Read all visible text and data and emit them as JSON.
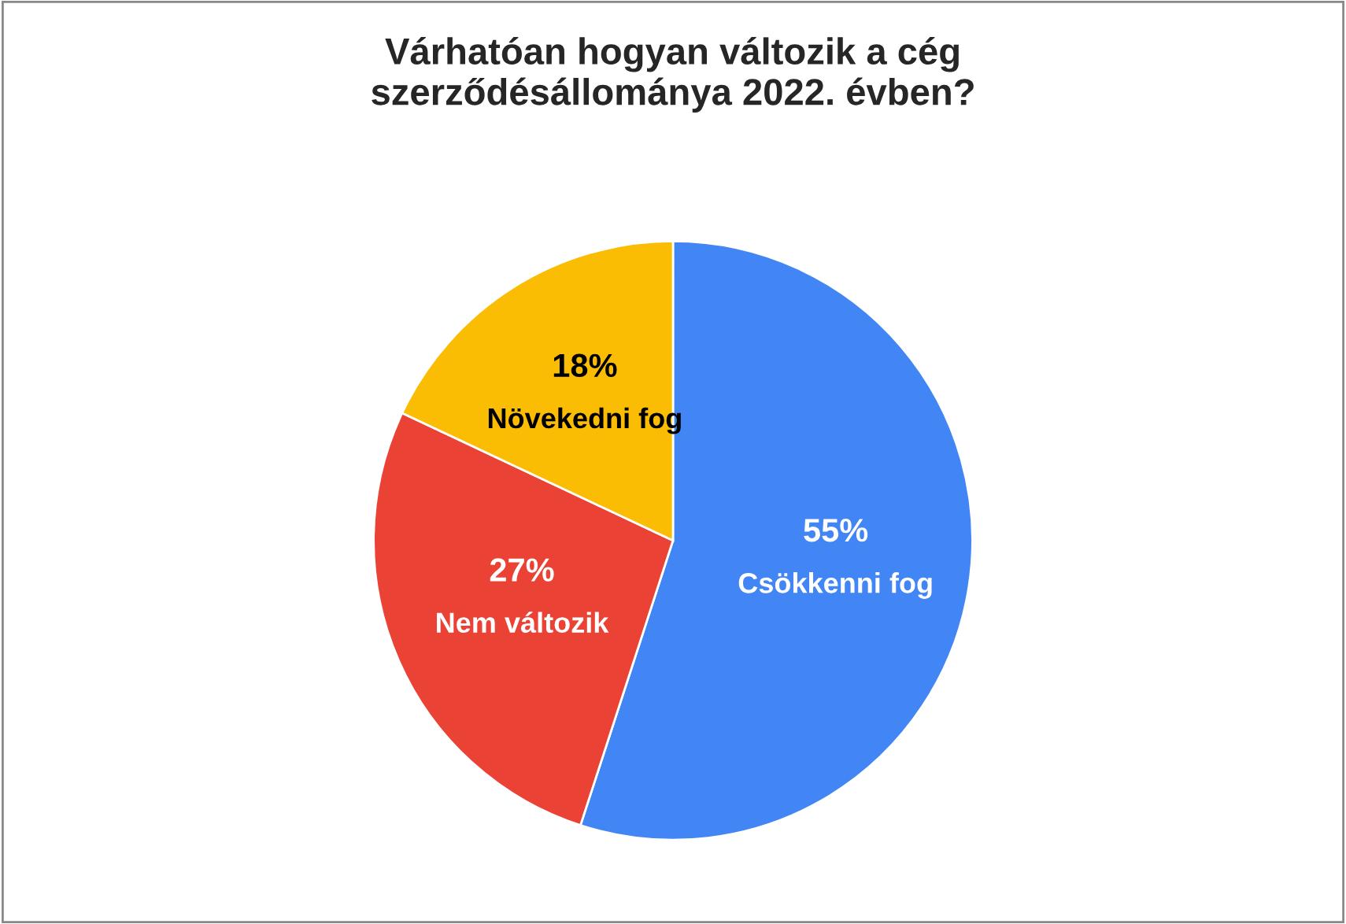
{
  "chart_data": {
    "type": "pie",
    "title": "Várhatóan hogyan változik a cég\nszerződésállománya 2022. évben?",
    "categories": [
      "Csökkenni fog",
      "Nem változik",
      "Növekedni fog"
    ],
    "values": [
      55,
      27,
      18
    ],
    "value_labels": [
      "55%",
      "27%",
      "18%"
    ],
    "colors": [
      "#4285f4",
      "#ea4335",
      "#fbbc04"
    ]
  }
}
